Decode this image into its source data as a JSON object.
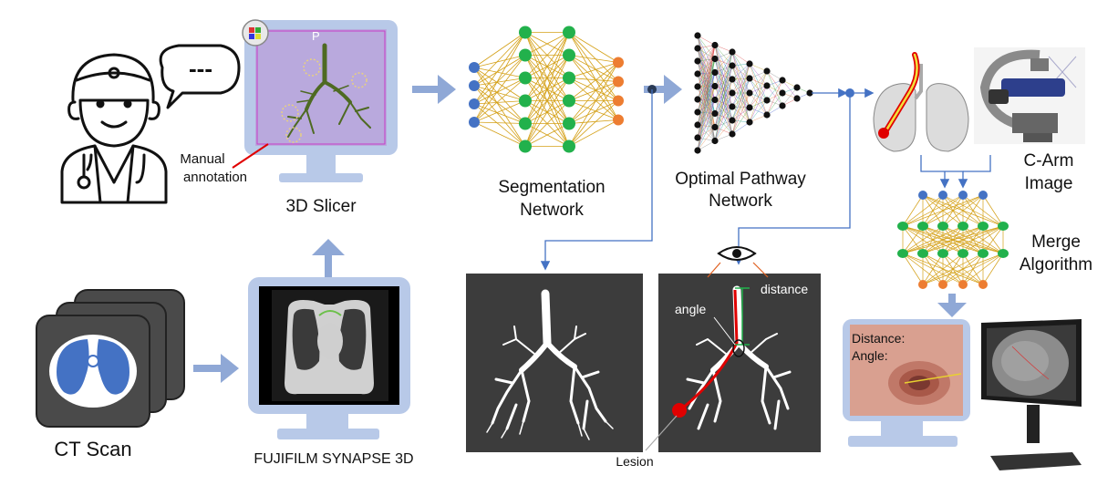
{
  "labels": {
    "manual_annotation_line1": "Manual",
    "manual_annotation_line2": "annotation",
    "slicer": "3D Slicer",
    "slicer_p": "P",
    "segmentation_line1": "Segmentation",
    "segmentation_line2": "Network",
    "optimal_line1": "Optimal Pathway",
    "optimal_line2": "Network",
    "carm_line1": "C-Arm",
    "carm_line2": "Image",
    "merge_line1": "Merge",
    "merge_line2": "Algorithm",
    "ct_scan": "CT Scan",
    "fujifilm": "FUJIFILM SYNAPSE 3D",
    "distance": "distance",
    "angle": "angle",
    "lesion": "Lesion",
    "screen_distance": "Distance:",
    "screen_angle": "Angle:"
  },
  "speech_bubble": "---",
  "colors": {
    "monitor": "#b8c9e8",
    "arrow": "#8fa8d6",
    "blue_node": "#4472c4",
    "green_node": "#22b14c",
    "orange_node": "#ed7d31",
    "edge": "#d4a017",
    "dark_panel": "#3c3c3c",
    "lesion": "#e00000"
  }
}
